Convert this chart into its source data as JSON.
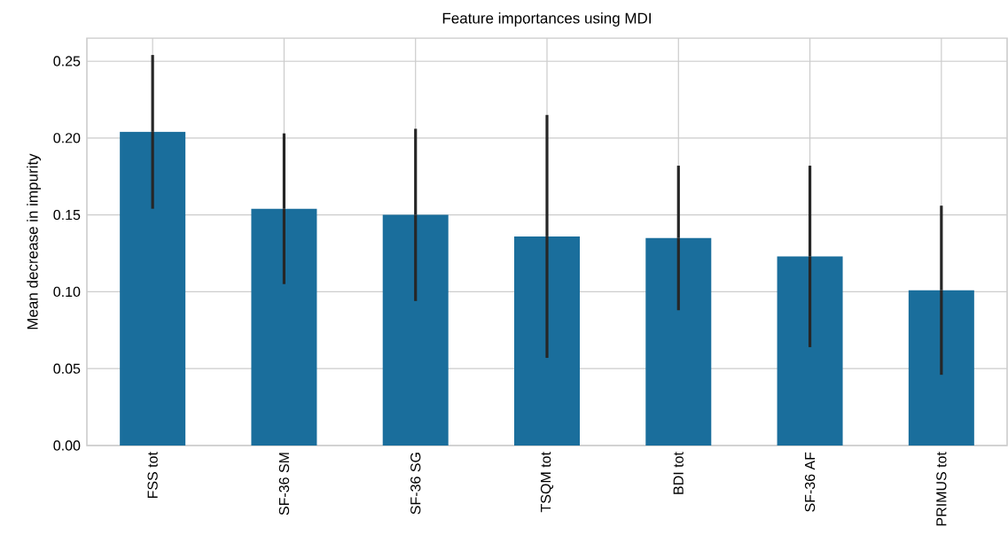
{
  "chart_data": {
    "type": "bar",
    "title": "Feature importances using MDI",
    "ylabel": "Mean decrease in impurity",
    "categories": [
      "FSS tot",
      "SF-36 SM",
      "SF-36 SG",
      "TSQM tot",
      "BDI tot",
      "SF-36 AF",
      "PRIMUS tot"
    ],
    "values": [
      0.204,
      0.154,
      0.15,
      0.136,
      0.135,
      0.123,
      0.101
    ],
    "errors": [
      0.05,
      0.049,
      0.056,
      0.079,
      0.047,
      0.059,
      0.055
    ],
    "color": "#1a6e9c",
    "ylim": [
      0,
      0.265
    ],
    "yticks": [
      {
        "value": 0,
        "label": "0.00"
      },
      {
        "value": 0.05,
        "label": "0.05"
      },
      {
        "value": 0.1,
        "label": "0.10"
      },
      {
        "value": 0.15,
        "label": "0.15"
      },
      {
        "value": 0.2,
        "label": "0.20"
      },
      {
        "value": 0.25,
        "label": "0.25"
      }
    ],
    "grid": true
  }
}
